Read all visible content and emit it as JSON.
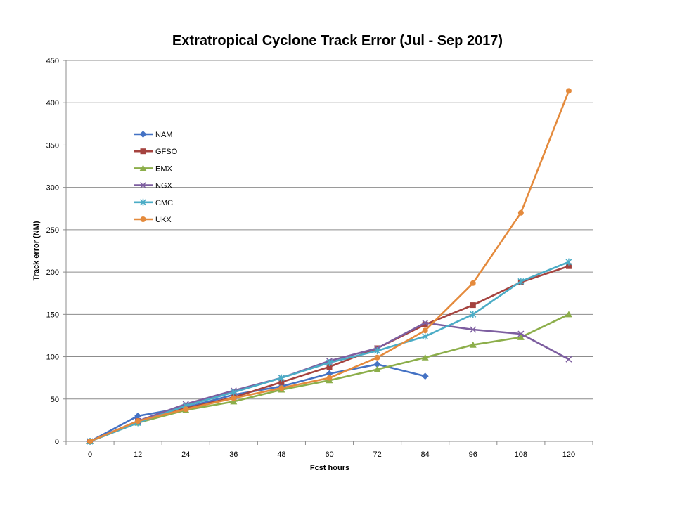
{
  "chart_data": {
    "type": "line",
    "title": "Extratropical Cyclone Track Error (Jul - Sep 2017)",
    "xlabel": "Fcst hours",
    "ylabel": "Track error  (NM)",
    "x": [
      0,
      12,
      24,
      36,
      48,
      60,
      72,
      84,
      96,
      108,
      120
    ],
    "ylim": [
      0,
      450
    ],
    "yticks": [
      0,
      50,
      100,
      150,
      200,
      250,
      300,
      350,
      400,
      450
    ],
    "grid": "horizontal",
    "legend_position": "upper-left inside plot",
    "series": [
      {
        "name": "NAM",
        "color": "#4472C4",
        "marker": "diamond",
        "values": [
          0,
          30,
          40,
          55,
          65,
          80,
          91,
          77,
          null,
          null,
          null
        ]
      },
      {
        "name": "GFSO",
        "color": "#A5433F",
        "marker": "square",
        "values": [
          0,
          24,
          39,
          52,
          70,
          88,
          110,
          138,
          161,
          188,
          207
        ]
      },
      {
        "name": "EMX",
        "color": "#8CAE4A",
        "marker": "triangle",
        "values": [
          0,
          22,
          37,
          47,
          61,
          72,
          85,
          99,
          114,
          123,
          150
        ]
      },
      {
        "name": "NGX",
        "color": "#7D5EA0",
        "marker": "x",
        "values": [
          0,
          24,
          44,
          60,
          75,
          95,
          110,
          140,
          132,
          127,
          97
        ]
      },
      {
        "name": "CMC",
        "color": "#4BACC6",
        "marker": "star",
        "values": [
          0,
          22,
          42,
          58,
          75,
          93,
          107,
          124,
          150,
          189,
          212
        ]
      },
      {
        "name": "UKX",
        "color": "#E48A3C",
        "marker": "circle",
        "values": [
          0,
          24,
          38,
          51,
          63,
          75,
          99,
          131,
          187,
          270,
          414
        ]
      }
    ]
  }
}
